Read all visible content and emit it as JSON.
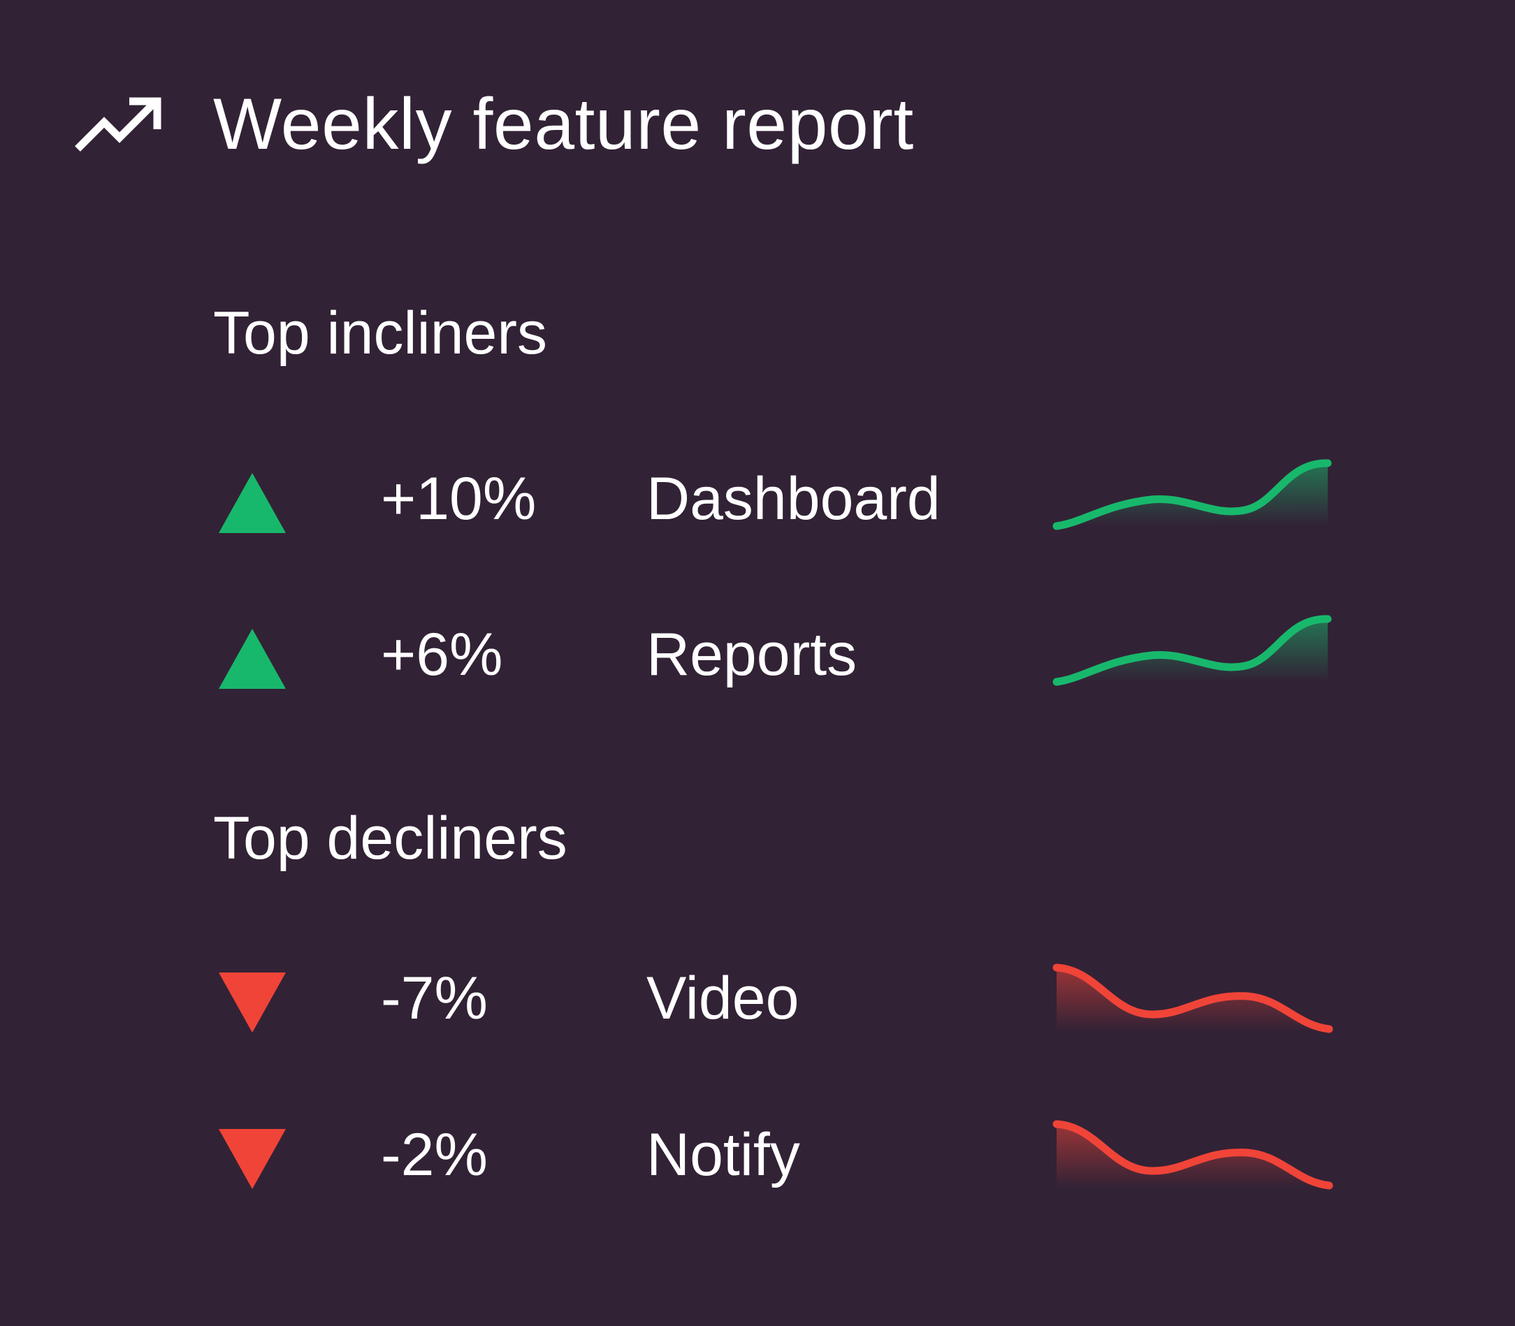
{
  "header": {
    "title": "Weekly feature report",
    "icon": "trending-up-icon"
  },
  "colors": {
    "background": "#322235",
    "text": "#ffffff",
    "up": "#18b86c",
    "down": "#f04438"
  },
  "sections": {
    "incliners": {
      "title": "Top incliners",
      "items": [
        {
          "change": "+10%",
          "feature": "Dashboard",
          "direction": "up"
        },
        {
          "change": "+6%",
          "feature": "Reports",
          "direction": "up"
        }
      ]
    },
    "decliners": {
      "title": "Top decliners",
      "items": [
        {
          "change": "-7%",
          "feature": "Video",
          "direction": "down"
        },
        {
          "change": "-2%",
          "feature": "Notify",
          "direction": "down"
        }
      ]
    }
  }
}
